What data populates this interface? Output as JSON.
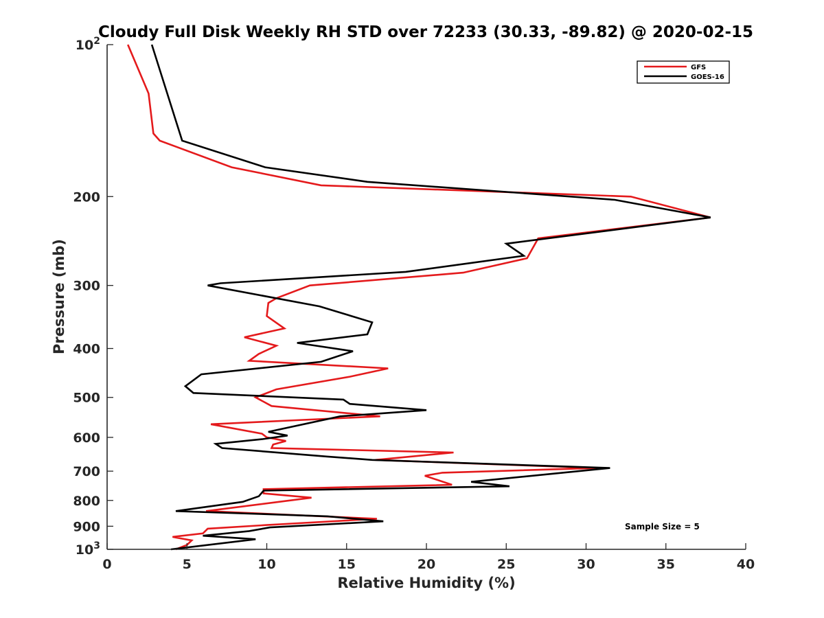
{
  "chart_data": {
    "type": "line",
    "title": "Cloudy Full Disk Weekly RH STD over 72233 (30.33, -89.82) @ 2020-02-15",
    "xlabel": "Relative Humidity (%)",
    "ylabel": "Pressure (mb)",
    "xlim": [
      0,
      40
    ],
    "ylim": [
      100,
      1000
    ],
    "yscale": "log",
    "y_reversed": true,
    "grid": false,
    "x_ticks": [
      0,
      5,
      10,
      15,
      20,
      25,
      30,
      35,
      40
    ],
    "x_tick_labels": [
      "0",
      "5",
      "10",
      "15",
      "20",
      "25",
      "30",
      "35",
      "40"
    ],
    "y_ticks": [
      {
        "value": 100,
        "base": "10",
        "exp": "2"
      },
      {
        "value": 200,
        "base": "200",
        "exp": ""
      },
      {
        "value": 300,
        "base": "300",
        "exp": ""
      },
      {
        "value": 400,
        "base": "400",
        "exp": ""
      },
      {
        "value": 500,
        "base": "500",
        "exp": ""
      },
      {
        "value": 600,
        "base": "600",
        "exp": ""
      },
      {
        "value": 700,
        "base": "700",
        "exp": ""
      },
      {
        "value": 800,
        "base": "800",
        "exp": ""
      },
      {
        "value": 900,
        "base": "900",
        "exp": ""
      },
      {
        "value": 1000,
        "base": "10",
        "exp": "3"
      }
    ],
    "legend_position": "top-right",
    "annotation": "Sample Size = 5",
    "series": [
      {
        "name": "GFS",
        "color": "#e41a1c",
        "points": [
          [
            1.3,
            100
          ],
          [
            2.6,
            125
          ],
          [
            2.9,
            150
          ],
          [
            3.3,
            155
          ],
          [
            7.8,
            175
          ],
          [
            13.4,
            190
          ],
          [
            32.8,
            200
          ],
          [
            37.8,
            220
          ],
          [
            27.0,
            242
          ],
          [
            26.3,
            265
          ],
          [
            22.3,
            283
          ],
          [
            12.7,
            300
          ],
          [
            10.6,
            318
          ],
          [
            10.1,
            325
          ],
          [
            10.0,
            345
          ],
          [
            11.1,
            365
          ],
          [
            8.6,
            380
          ],
          [
            10.6,
            395
          ],
          [
            9.5,
            410
          ],
          [
            8.9,
            423
          ],
          [
            17.6,
            438
          ],
          [
            15.2,
            455
          ],
          [
            10.6,
            482
          ],
          [
            9.3,
            500
          ],
          [
            10.3,
            520
          ],
          [
            17.1,
            545
          ],
          [
            6.5,
            565
          ],
          [
            9.7,
            590
          ],
          [
            10.0,
            600
          ],
          [
            11.2,
            610
          ],
          [
            10.4,
            620
          ],
          [
            10.3,
            630
          ],
          [
            21.7,
            643
          ],
          [
            16.8,
            665
          ],
          [
            30.7,
            690
          ],
          [
            21.0,
            705
          ],
          [
            19.9,
            715
          ],
          [
            21.6,
            745
          ],
          [
            9.8,
            760
          ],
          [
            9.8,
            775
          ],
          [
            12.8,
            790
          ],
          [
            6.2,
            840
          ],
          [
            16.9,
            870
          ],
          [
            10.0,
            895
          ],
          [
            6.3,
            910
          ],
          [
            6.0,
            930
          ],
          [
            4.1,
            945
          ],
          [
            5.3,
            960
          ],
          [
            5.0,
            980
          ],
          [
            4.3,
            1000
          ]
        ]
      },
      {
        "name": "GOES-16",
        "color": "#000000",
        "points": [
          [
            2.8,
            100
          ],
          [
            4.7,
            155
          ],
          [
            9.9,
            175
          ],
          [
            16.3,
            187
          ],
          [
            31.8,
            203
          ],
          [
            37.8,
            220
          ],
          [
            25.0,
            248
          ],
          [
            26.1,
            262
          ],
          [
            18.7,
            282
          ],
          [
            7.1,
            297
          ],
          [
            6.3,
            300
          ],
          [
            13.3,
            330
          ],
          [
            16.6,
            355
          ],
          [
            16.3,
            375
          ],
          [
            11.9,
            390
          ],
          [
            15.4,
            405
          ],
          [
            13.4,
            425
          ],
          [
            5.9,
            450
          ],
          [
            4.9,
            475
          ],
          [
            5.4,
            490
          ],
          [
            14.8,
            505
          ],
          [
            15.2,
            515
          ],
          [
            20.0,
            530
          ],
          [
            14.6,
            545
          ],
          [
            10.1,
            585
          ],
          [
            11.3,
            595
          ],
          [
            9.7,
            605
          ],
          [
            6.8,
            618
          ],
          [
            7.2,
            630
          ],
          [
            13.8,
            655
          ],
          [
            16.6,
            665
          ],
          [
            31.5,
            690
          ],
          [
            22.8,
            735
          ],
          [
            25.2,
            750
          ],
          [
            9.8,
            765
          ],
          [
            9.5,
            785
          ],
          [
            8.5,
            805
          ],
          [
            4.3,
            840
          ],
          [
            13.8,
            860
          ],
          [
            17.3,
            880
          ],
          [
            10.2,
            905
          ],
          [
            8.9,
            920
          ],
          [
            6.0,
            940
          ],
          [
            9.3,
            955
          ],
          [
            4.0,
            1000
          ]
        ]
      }
    ]
  }
}
